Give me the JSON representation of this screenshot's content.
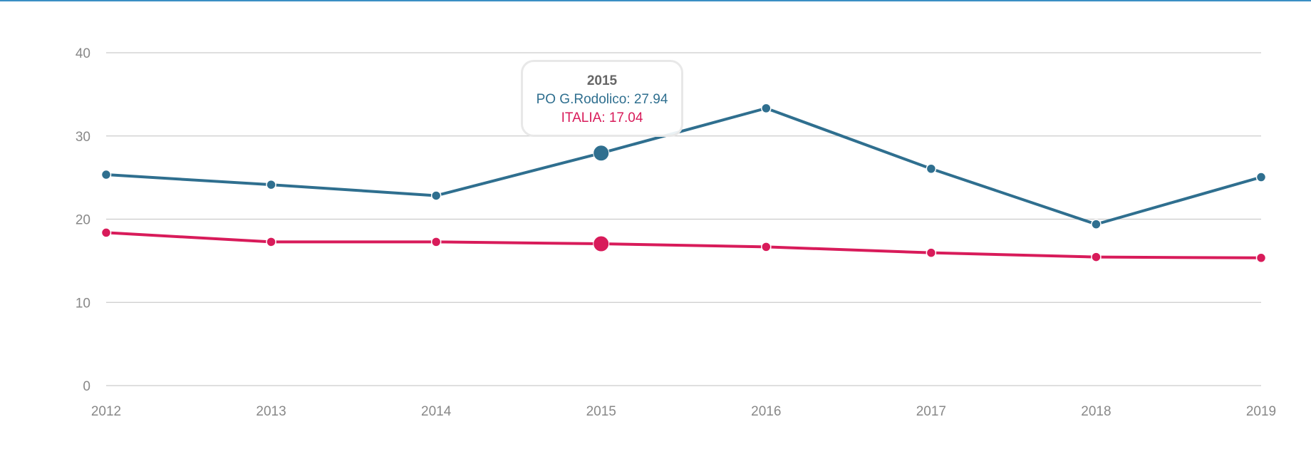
{
  "chart_data": {
    "type": "line",
    "categories": [
      "2012",
      "2013",
      "2014",
      "2015",
      "2016",
      "2017",
      "2018",
      "2019"
    ],
    "series": [
      {
        "name": "PO G.Rodolico",
        "color": "#2f6f8f",
        "values": [
          25.35,
          24.14,
          22.83,
          27.94,
          33.33,
          26.06,
          19.39,
          25.05
        ]
      },
      {
        "name": "ITALIA",
        "color": "#d81b5a",
        "values": [
          18.38,
          17.27,
          17.27,
          17.04,
          16.67,
          15.96,
          15.45,
          15.35
        ]
      }
    ],
    "ylim": [
      0,
      40
    ],
    "yticks": [
      "0",
      "10",
      "20",
      "30",
      "40"
    ],
    "grid": true,
    "title": "",
    "xlabel": "",
    "ylabel": "",
    "highlight_index": 3
  },
  "tooltip": {
    "title": "2015",
    "line1": "PO G.Rodolico: 27.94",
    "line2": "ITALIA: 17.04"
  }
}
